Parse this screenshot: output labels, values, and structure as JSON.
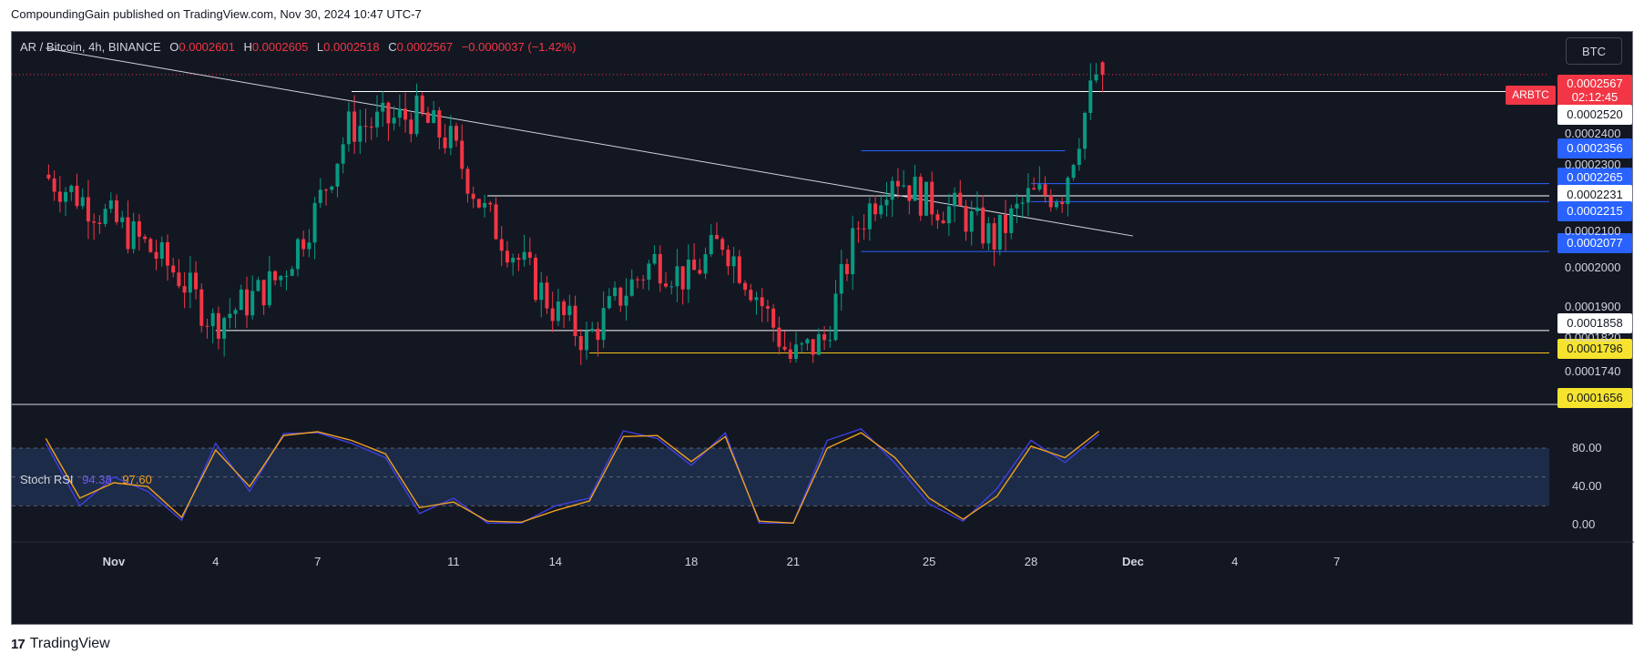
{
  "header": {
    "publish_text": "CompoundingGain published on TradingView.com, Nov 30, 2024 10:47 UTC-7"
  },
  "footer": {
    "brand": "TradingView",
    "logo_glyph": "17"
  },
  "currency_button": "BTC",
  "legend": {
    "symbol": "AR / Bitcoin, 4h, BINANCE",
    "open_key": "O",
    "open": "0.0002601",
    "high_key": "H",
    "high": "0.0002605",
    "low_key": "L",
    "low": "0.0002518",
    "close_key": "C",
    "close": "0.0002567",
    "change": "−0.0000037 (−1.42%)"
  },
  "stoch_legend": {
    "name": "Stoch RSI",
    "k": "94.38",
    "d": "97.60"
  },
  "symbol_tag": "ARBTC",
  "price_labels": [
    {
      "text": "0.0002567",
      "sub": "02:12:45",
      "bg": "#f23645",
      "fg": "#ffffff"
    },
    {
      "text": "0.0002520",
      "bg": "#ffffff",
      "fg": "#131722"
    },
    {
      "text": "0.0002356",
      "bg": "#2962ff",
      "fg": "#ffffff"
    },
    {
      "text": "0.0002265",
      "bg": "#2962ff",
      "fg": "#ffffff"
    },
    {
      "text": "0.0002231",
      "bg": "#ffffff",
      "fg": "#131722"
    },
    {
      "text": "0.0002215",
      "bg": "#2962ff",
      "fg": "#ffffff"
    },
    {
      "text": "0.0002077",
      "bg": "#2962ff",
      "fg": "#ffffff"
    },
    {
      "text": "0.0001858",
      "bg": "#ffffff",
      "fg": "#131722"
    },
    {
      "text": "0.0001796",
      "bg": "#f5e32e",
      "fg": "#131722"
    },
    {
      "text": "0.0001656",
      "bg": "#f5e32e",
      "fg": "#131722"
    }
  ],
  "colors": {
    "up": "#089981",
    "down": "#f23645",
    "k_line": "#3f3fe0",
    "d_line": "#f0a020",
    "band": "#1e2f4d"
  },
  "chart_data": [
    {
      "type": "candlestick",
      "title": "AR / Bitcoin, 4h, BINANCE",
      "xlabel": "",
      "ylabel": "",
      "x_tick_labels": [
        "Nov",
        "4",
        "7",
        "11",
        "14",
        "18",
        "21",
        "25",
        "28",
        "Dec",
        "4",
        "7"
      ],
      "y_tick_labels": [
        "0.0002400",
        "0.0002300",
        "0.0002100",
        "0.0002000",
        "0.0001900",
        "0.0001820",
        "0.0001740"
      ],
      "ylim": [
        0.0001656,
        0.000266
      ],
      "close_path": [
        [
          "2024-10-30",
          0.000229
        ],
        [
          "2024-10-31",
          0.0002232
        ],
        [
          "2024-11-01",
          0.0002165
        ],
        [
          "2024-11-02",
          0.0002095
        ],
        [
          "2024-11-03",
          0.000201
        ],
        [
          "2024-11-04",
          0.000188
        ],
        [
          "2024-11-05",
          0.0001938
        ],
        [
          "2024-11-06",
          0.000201
        ],
        [
          "2024-11-07",
          0.0002185
        ],
        [
          "2024-11-08",
          0.000242
        ],
        [
          "2024-11-09",
          0.0002435
        ],
        [
          "2024-11-10",
          0.0002455
        ],
        [
          "2024-11-11",
          0.000238
        ],
        [
          "2024-11-12",
          0.0002185
        ],
        [
          "2024-11-13",
          0.0002055
        ],
        [
          "2024-11-14",
          0.0001922
        ],
        [
          "2024-11-15",
          0.000183
        ],
        [
          "2024-11-16",
          0.0001955
        ],
        [
          "2024-11-17",
          0.0002052
        ],
        [
          "2024-11-18",
          0.0002
        ],
        [
          "2024-11-19",
          0.000211
        ],
        [
          "2024-11-20",
          0.000196
        ],
        [
          "2024-11-21",
          0.000178
        ],
        [
          "2024-11-22",
          0.0001832
        ],
        [
          "2024-11-23",
          0.000215
        ],
        [
          "2024-11-24",
          0.00023
        ],
        [
          "2024-11-25",
          0.0002215
        ],
        [
          "2024-11-26",
          0.0002185
        ],
        [
          "2024-11-27",
          0.000211
        ],
        [
          "2024-11-28",
          0.0002225
        ],
        [
          "2024-11-29",
          0.0002245
        ],
        [
          "2024-11-30",
          0.0002567
        ]
      ],
      "last_ohlc": {
        "open": 0.0002601,
        "high": 0.0002605,
        "low": 0.0002518,
        "close": 0.0002567
      },
      "horizontal_levels": [
        {
          "from": "2024-11-08",
          "price": 0.000252,
          "color": "#ffffff"
        },
        {
          "from": "2024-11-23",
          "to": "2024-11-29",
          "price": 0.0002356,
          "color": "#2962ff"
        },
        {
          "from": "2024-11-28",
          "price": 0.0002265,
          "color": "#2962ff"
        },
        {
          "from": "2024-11-12",
          "price": 0.0002231,
          "color": "#ffffff"
        },
        {
          "from": "2024-11-28",
          "price": 0.0002215,
          "color": "#2962ff"
        },
        {
          "from": "2024-11-23",
          "price": 0.0002077,
          "color": "#2962ff"
        },
        {
          "from": "2024-11-04",
          "price": 0.0001858,
          "color": "#ffffff"
        },
        {
          "from": "2024-11-15",
          "price": 0.0001796,
          "color": "#f5c518"
        }
      ],
      "trendline": {
        "from": [
          "2024-10-30",
          0.000264
        ],
        "to": [
          "2024-12-01",
          0.000212
        ],
        "color": "#d1d4dc"
      },
      "grid": false
    },
    {
      "type": "line",
      "title": "Stoch RSI",
      "xlabel": "",
      "ylabel": "",
      "y_tick_labels": [
        "80.00",
        "40.00",
        "0.00"
      ],
      "ylim": [
        -10,
        115
      ],
      "band": [
        20,
        80
      ],
      "series": [
        {
          "name": "K",
          "points": [
            [
              "2024-10-30",
              85
            ],
            [
              "2024-10-31",
              20
            ],
            [
              "2024-11-01",
              50
            ],
            [
              "2024-11-02",
              35
            ],
            [
              "2024-11-03",
              5
            ],
            [
              "2024-11-04",
              85
            ],
            [
              "2024-11-05",
              35
            ],
            [
              "2024-11-06",
              95
            ],
            [
              "2024-11-07",
              96
            ],
            [
              "2024-11-08",
              85
            ],
            [
              "2024-11-09",
              70
            ],
            [
              "2024-11-10",
              12
            ],
            [
              "2024-11-11",
              28
            ],
            [
              "2024-11-12",
              2
            ],
            [
              "2024-11-13",
              2
            ],
            [
              "2024-11-14",
              20
            ],
            [
              "2024-11-15",
              28
            ],
            [
              "2024-11-16",
              98
            ],
            [
              "2024-11-17",
              90
            ],
            [
              "2024-11-18",
              62
            ],
            [
              "2024-11-19",
              96
            ],
            [
              "2024-11-20",
              2
            ],
            [
              "2024-11-21",
              2
            ],
            [
              "2024-11-22",
              88
            ],
            [
              "2024-11-23",
              100
            ],
            [
              "2024-11-24",
              64
            ],
            [
              "2024-11-25",
              22
            ],
            [
              "2024-11-26",
              4
            ],
            [
              "2024-11-27",
              38
            ],
            [
              "2024-11-28",
              88
            ],
            [
              "2024-11-29",
              65
            ],
            [
              "2024-11-30",
              94.38
            ]
          ]
        },
        {
          "name": "D",
          "points": [
            [
              "2024-10-30",
              90
            ],
            [
              "2024-10-31",
              28
            ],
            [
              "2024-11-01",
              44
            ],
            [
              "2024-11-02",
              40
            ],
            [
              "2024-11-03",
              8
            ],
            [
              "2024-11-04",
              78
            ],
            [
              "2024-11-05",
              40
            ],
            [
              "2024-11-06",
              93
            ],
            [
              "2024-11-07",
              97
            ],
            [
              "2024-11-08",
              88
            ],
            [
              "2024-11-09",
              74
            ],
            [
              "2024-11-10",
              18
            ],
            [
              "2024-11-11",
              24
            ],
            [
              "2024-11-12",
              4
            ],
            [
              "2024-11-13",
              3
            ],
            [
              "2024-11-14",
              15
            ],
            [
              "2024-11-15",
              25
            ],
            [
              "2024-11-16",
              92
            ],
            [
              "2024-11-17",
              93
            ],
            [
              "2024-11-18",
              66
            ],
            [
              "2024-11-19",
              92
            ],
            [
              "2024-11-20",
              4
            ],
            [
              "2024-11-21",
              2
            ],
            [
              "2024-11-22",
              80
            ],
            [
              "2024-11-23",
              96
            ],
            [
              "2024-11-24",
              70
            ],
            [
              "2024-11-25",
              28
            ],
            [
              "2024-11-26",
              6
            ],
            [
              "2024-11-27",
              30
            ],
            [
              "2024-11-28",
              82
            ],
            [
              "2024-11-29",
              70
            ],
            [
              "2024-11-30",
              97.6
            ]
          ]
        }
      ]
    }
  ]
}
